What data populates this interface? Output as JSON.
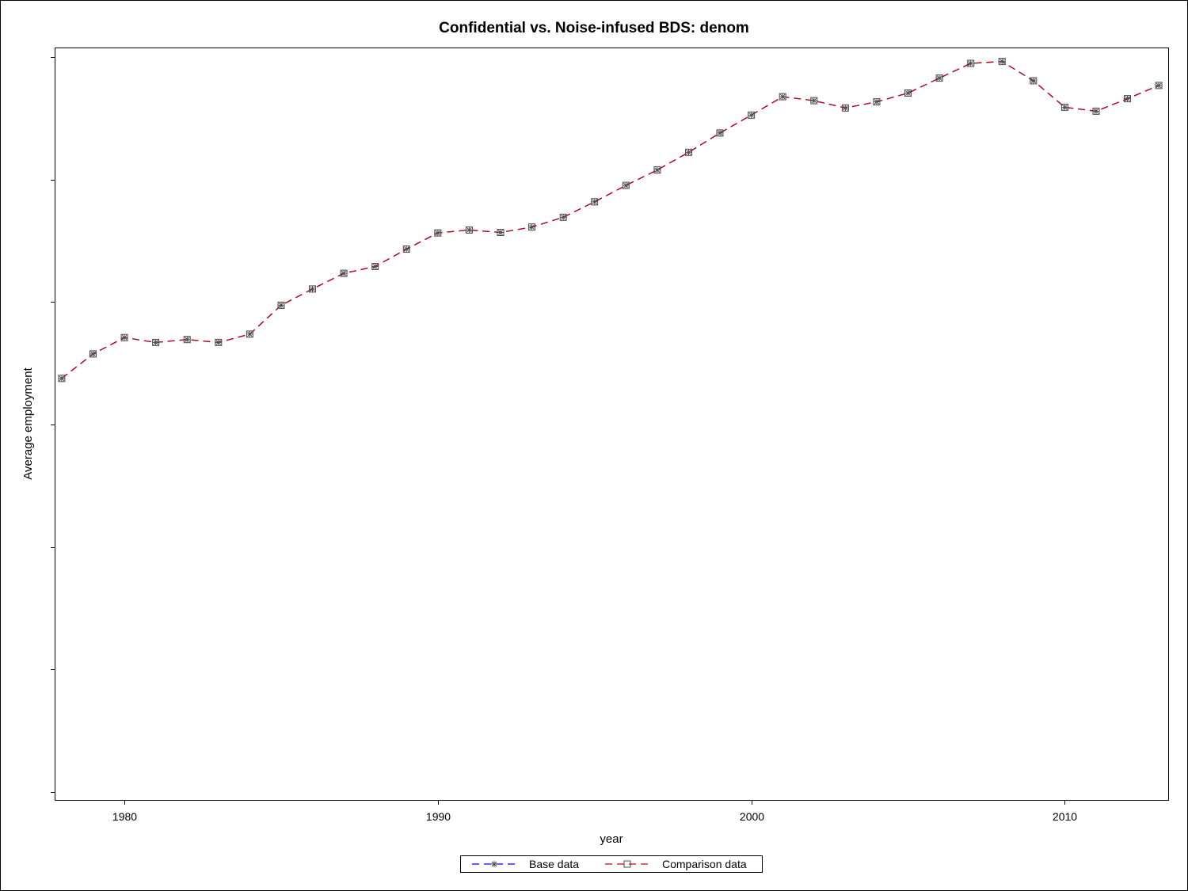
{
  "chart_data": {
    "type": "line",
    "title": "Confidential vs. Noise-infused BDS: denom",
    "xlabel": "year",
    "ylabel": "Average employment",
    "xlim": [
      1977.8,
      2013.3
    ],
    "ylim": [
      0,
      3
    ],
    "x_ticks": [
      1980,
      1990,
      2000,
      2010
    ],
    "y_ticks_count": 7,
    "y_tick_labels_shown": false,
    "legend_position": "bottom-center",
    "grid": false,
    "x": [
      1978,
      1979,
      1980,
      1981,
      1982,
      1983,
      1984,
      1985,
      1986,
      1987,
      1988,
      1989,
      1990,
      1991,
      1992,
      1993,
      1994,
      1995,
      1996,
      1997,
      1998,
      1999,
      2000,
      2001,
      2002,
      2003,
      2004,
      2005,
      2006,
      2007,
      2008,
      2009,
      2010,
      2011,
      2012,
      2013
    ],
    "series": [
      {
        "name": "Base data",
        "color": "#0000ff",
        "marker": "asterisk",
        "values": [
          1.688,
          1.788,
          1.855,
          1.835,
          1.847,
          1.835,
          1.869,
          1.987,
          2.053,
          2.117,
          2.145,
          2.216,
          2.282,
          2.294,
          2.284,
          2.306,
          2.346,
          2.409,
          2.476,
          2.539,
          2.611,
          2.69,
          2.763,
          2.838,
          2.822,
          2.792,
          2.817,
          2.853,
          2.914,
          2.974,
          2.982,
          2.903,
          2.795,
          2.779,
          2.83,
          2.884
        ]
      },
      {
        "name": "Comparison data",
        "color": "#cc0000",
        "marker": "square",
        "values": [
          1.688,
          1.788,
          1.855,
          1.835,
          1.847,
          1.835,
          1.869,
          1.987,
          2.053,
          2.117,
          2.145,
          2.216,
          2.282,
          2.294,
          2.284,
          2.306,
          2.346,
          2.409,
          2.476,
          2.539,
          2.611,
          2.69,
          2.763,
          2.838,
          2.822,
          2.792,
          2.817,
          2.853,
          2.914,
          2.974,
          2.982,
          2.903,
          2.795,
          2.779,
          2.83,
          2.884
        ]
      }
    ]
  }
}
